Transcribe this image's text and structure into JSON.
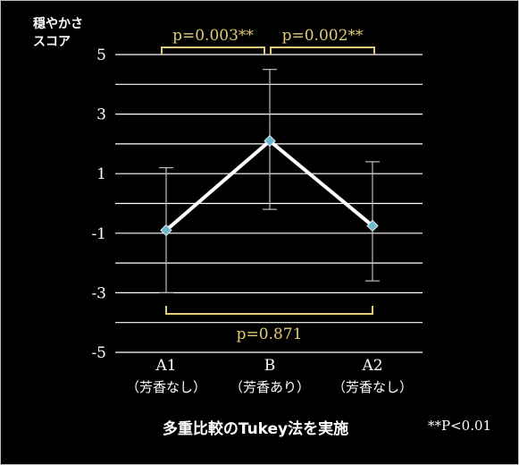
{
  "chart_data": {
    "type": "line",
    "ylabel_lines": [
      "穏やかさ",
      "スコア"
    ],
    "ylim": [
      -5,
      5
    ],
    "yticks": [
      5,
      3,
      1,
      -1,
      -3,
      -5
    ],
    "grid": true,
    "categories": [
      {
        "label": "A1",
        "sub": "（芳香なし）"
      },
      {
        "label": "B",
        "sub": "（芳香あり）"
      },
      {
        "label": "A2",
        "sub": "（芳香なし）"
      }
    ],
    "values": [
      -0.9,
      2.1,
      -0.75
    ],
    "error_upper": [
      1.2,
      4.5,
      1.4
    ],
    "error_lower": [
      -3.0,
      -0.2,
      -2.6
    ],
    "comparisons": [
      {
        "from": 0,
        "to": 1,
        "label": "p=0.003**",
        "position": "top"
      },
      {
        "from": 1,
        "to": 2,
        "label": "p=0.002**",
        "position": "top"
      },
      {
        "from": 0,
        "to": 2,
        "label": "p=0.871",
        "position": "bottom"
      }
    ],
    "caption": "多重比較のTukey法を実施",
    "significance_note": "**P<0.01",
    "colors": {
      "line": "#ffffff",
      "marker": "#6fb8cc",
      "bracket": "#e0cc78",
      "grid": "#ffffff",
      "background": "#000000"
    }
  }
}
